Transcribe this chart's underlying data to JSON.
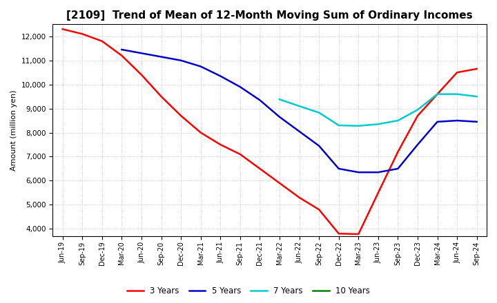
{
  "title": "[2109]  Trend of Mean of 12-Month Moving Sum of Ordinary Incomes",
  "ylabel": "Amount (million yen)",
  "background_color": "#ffffff",
  "grid_color": "#b0b0b0",
  "x_labels": [
    "Jun-19",
    "Sep-19",
    "Dec-19",
    "Mar-20",
    "Jun-20",
    "Sep-20",
    "Dec-20",
    "Mar-21",
    "Jun-21",
    "Sep-21",
    "Dec-21",
    "Mar-22",
    "Jun-22",
    "Sep-22",
    "Dec-22",
    "Mar-23",
    "Jun-23",
    "Sep-23",
    "Dec-23",
    "Mar-24",
    "Jun-24",
    "Sep-24"
  ],
  "series": [
    {
      "name": "3 Years",
      "color": "#ff0000",
      "data_x": [
        0,
        1,
        2,
        3,
        4,
        5,
        6,
        7,
        8,
        9,
        10,
        11,
        12,
        13,
        14,
        15,
        16,
        17,
        18,
        19,
        20,
        21
      ],
      "data_y": [
        12300,
        12100,
        11800,
        11200,
        10400,
        9500,
        8700,
        8000,
        7500,
        7100,
        6500,
        5900,
        5300,
        4800,
        3800,
        3780,
        5500,
        7200,
        8700,
        9600,
        10500,
        10650
      ]
    },
    {
      "name": "5 Years",
      "color": "#0000cc",
      "data_x": [
        3,
        4,
        5,
        6,
        7,
        8,
        9,
        10,
        11,
        12,
        13,
        14,
        15,
        16,
        17,
        18,
        19,
        20,
        21
      ],
      "data_y": [
        11450,
        11300,
        11150,
        11000,
        10750,
        10350,
        9900,
        9350,
        8650,
        8050,
        7450,
        6500,
        6350,
        6350,
        6500,
        7500,
        8450,
        8500,
        8450
      ]
    },
    {
      "name": "7 Years",
      "color": "#00cccc",
      "data_x": [
        11,
        12,
        13,
        14,
        15,
        16,
        17,
        18,
        19,
        20,
        21
      ],
      "data_y": [
        9380,
        9100,
        8830,
        8300,
        8280,
        8350,
        8500,
        8950,
        9600,
        9600,
        9500
      ]
    },
    {
      "name": "10 Years",
      "color": "#008000",
      "data_x": [],
      "data_y": []
    }
  ],
  "ylim_min": 3700,
  "ylim_max": 12500,
  "yticks": [
    4000,
    5000,
    6000,
    7000,
    8000,
    9000,
    10000,
    11000,
    12000
  ],
  "title_fontsize": 11,
  "legend_ncol": 4
}
